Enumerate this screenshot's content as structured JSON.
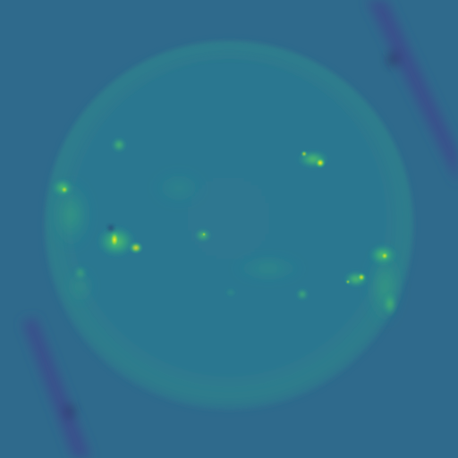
{
  "image": {
    "subject": "solar-disk",
    "colormap": "viridis",
    "colors": {
      "background": "#2f6a8c",
      "disk": "#2c7890",
      "limb": "#2f7c8c",
      "band_dark": "#3b3f8a",
      "band_darkest": "#2b0f52",
      "bright_mid": "#35b779",
      "bright_high": "#9bd93c",
      "bright_peak": "#fde725"
    }
  }
}
